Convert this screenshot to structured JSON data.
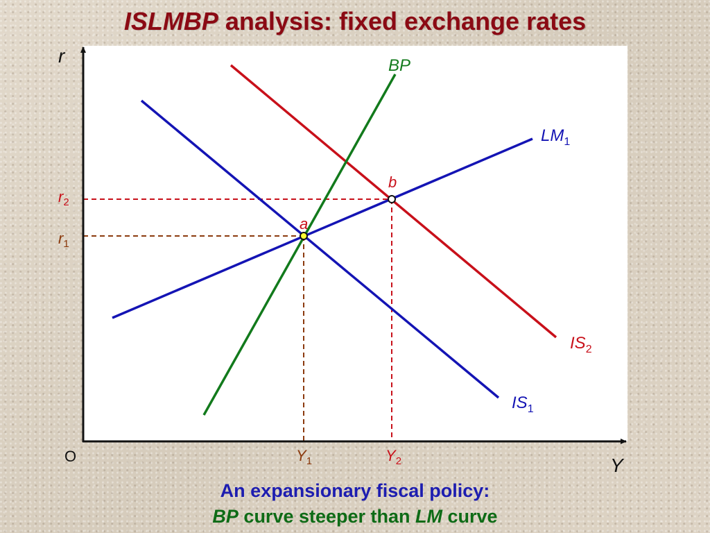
{
  "title": {
    "italic": "ISLMBP",
    "rest": " analysis: fixed exchange rates"
  },
  "axes": {
    "y_label": "r",
    "x_label": "Y",
    "origin_label": "O"
  },
  "curves": {
    "bp": {
      "label": "BP",
      "color": "#127a1c"
    },
    "lm1": {
      "label": "LM",
      "sub": "1",
      "color": "#1414b4"
    },
    "is1": {
      "label": "IS",
      "sub": "1",
      "color": "#1414b4"
    },
    "is2": {
      "label": "IS",
      "sub": "2",
      "color": "#c8101a"
    }
  },
  "points": {
    "a": {
      "label": "a",
      "fill": "#ffff33"
    },
    "b": {
      "label": "b",
      "fill": "#ffffff"
    }
  },
  "levels": {
    "r1": {
      "label": "r",
      "sub": "1"
    },
    "r2": {
      "label": "r",
      "sub": "2"
    },
    "y1": {
      "label": "Y",
      "sub": "1"
    },
    "y2": {
      "label": "Y",
      "sub": "2"
    }
  },
  "colors": {
    "red_label": "#c8101a",
    "brown_dash": "#8b3a0e",
    "red_dash": "#c8101a"
  },
  "caption": {
    "line1": "An expansionary fiscal policy:",
    "line2_bp": "BP",
    "line2_mid": " curve steeper than ",
    "line2_lm": "LM",
    "line2_end": " curve"
  }
}
